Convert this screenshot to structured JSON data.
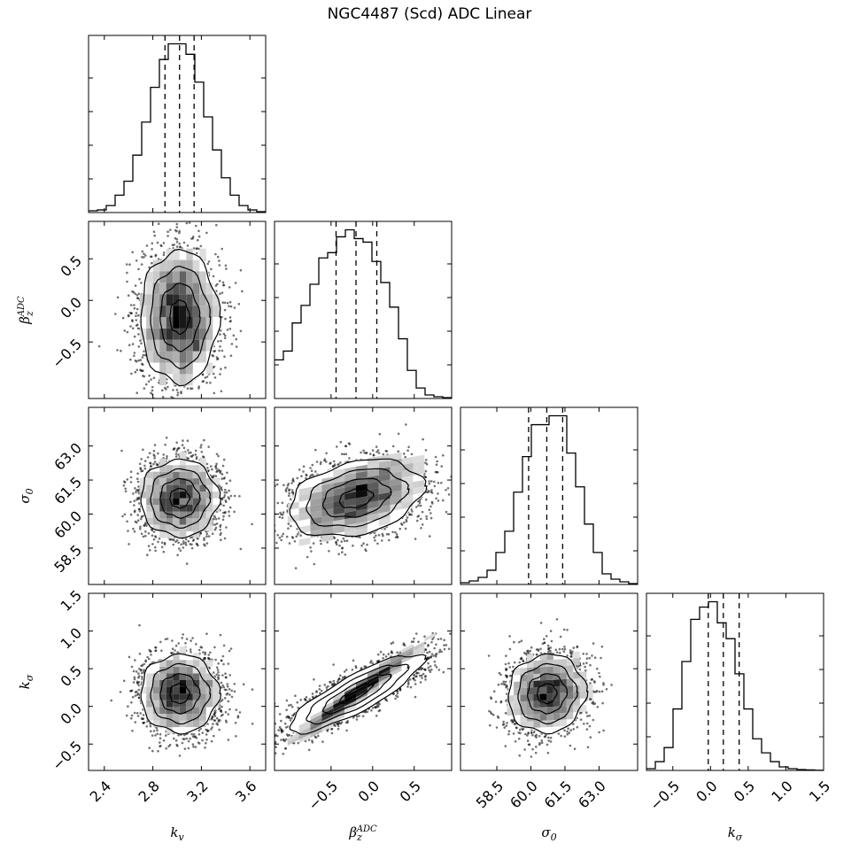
{
  "chart_data": {
    "type": "corner",
    "title": "NGC4487 (Scd) ADC Linear",
    "parameters": [
      {
        "label": "k_v",
        "range": [
          2.27,
          3.73
        ],
        "ticks": [
          2.4,
          2.8,
          3.2,
          3.6
        ],
        "tick_labels": [
          "2.4",
          "2.8",
          "3.2",
          "3.6"
        ],
        "quantiles": [
          2.9,
          3.02,
          3.14
        ],
        "median": 3.02,
        "sigma": 0.16,
        "hist_counts": [
          1,
          1.5,
          4,
          10,
          18,
          33,
          52,
          72,
          88,
          97,
          97,
          91,
          75,
          55,
          36,
          20,
          10,
          4,
          1.5,
          0.5
        ]
      },
      {
        "label": "β_z^ADC",
        "range": [
          -1.18,
          0.95
        ],
        "ticks": [
          -0.5,
          0.0,
          0.5
        ],
        "tick_labels": [
          "−0.5",
          "0.0",
          "0.5"
        ],
        "quantiles": [
          -0.44,
          -0.2,
          0.05
        ],
        "median": -0.2,
        "sigma": 0.4,
        "hist_counts": [
          22,
          27,
          43,
          53,
          65,
          80,
          83,
          92,
          96,
          91,
          89,
          78,
          66,
          52,
          34,
          16,
          6,
          2,
          1,
          0.5
        ]
      },
      {
        "label": "σ_0",
        "range": [
          56.9,
          64.7
        ],
        "ticks": [
          58.5,
          60.0,
          61.5,
          63.0
        ],
        "tick_labels": [
          "58.5",
          "60.0",
          "61.5",
          "63.0"
        ],
        "quantiles": [
          59.9,
          60.7,
          61.4
        ],
        "median": 60.7,
        "sigma": 0.85,
        "hist_counts": [
          1,
          2,
          4,
          8,
          18,
          30,
          52,
          72,
          90,
          90,
          95,
          95,
          74,
          55,
          34,
          18,
          6,
          3,
          1.5,
          0.5
        ]
      },
      {
        "label": "k_σ",
        "range": [
          -0.85,
          1.5
        ],
        "ticks": [
          -0.5,
          0.0,
          0.5,
          1.0,
          1.5
        ],
        "tick_labels": [
          "−0.5",
          "0.0",
          "0.5",
          "1.0",
          "1.5"
        ],
        "quantiles": [
          -0.03,
          0.17,
          0.38
        ],
        "median": 0.17,
        "sigma": 0.26,
        "hist_counts": [
          1,
          5,
          13,
          35,
          62,
          86,
          93,
          96,
          84,
          75,
          55,
          35,
          18,
          10,
          5,
          2,
          1,
          0.5,
          0.3,
          0.1
        ]
      }
    ],
    "correlations": {
      "1-0": 0.0,
      "2-0": 0.0,
      "2-1": 0.3,
      "3-0": 0.0,
      "3-1": 0.85,
      "3-2": 0.05
    },
    "contour_levels_sigma": [
      0.5,
      1.0,
      1.5,
      2.0
    ],
    "marks": {
      "line_color": "#000000",
      "point_color": "#000000",
      "density_cmap": [
        "#ffffff",
        "#000000"
      ]
    }
  }
}
